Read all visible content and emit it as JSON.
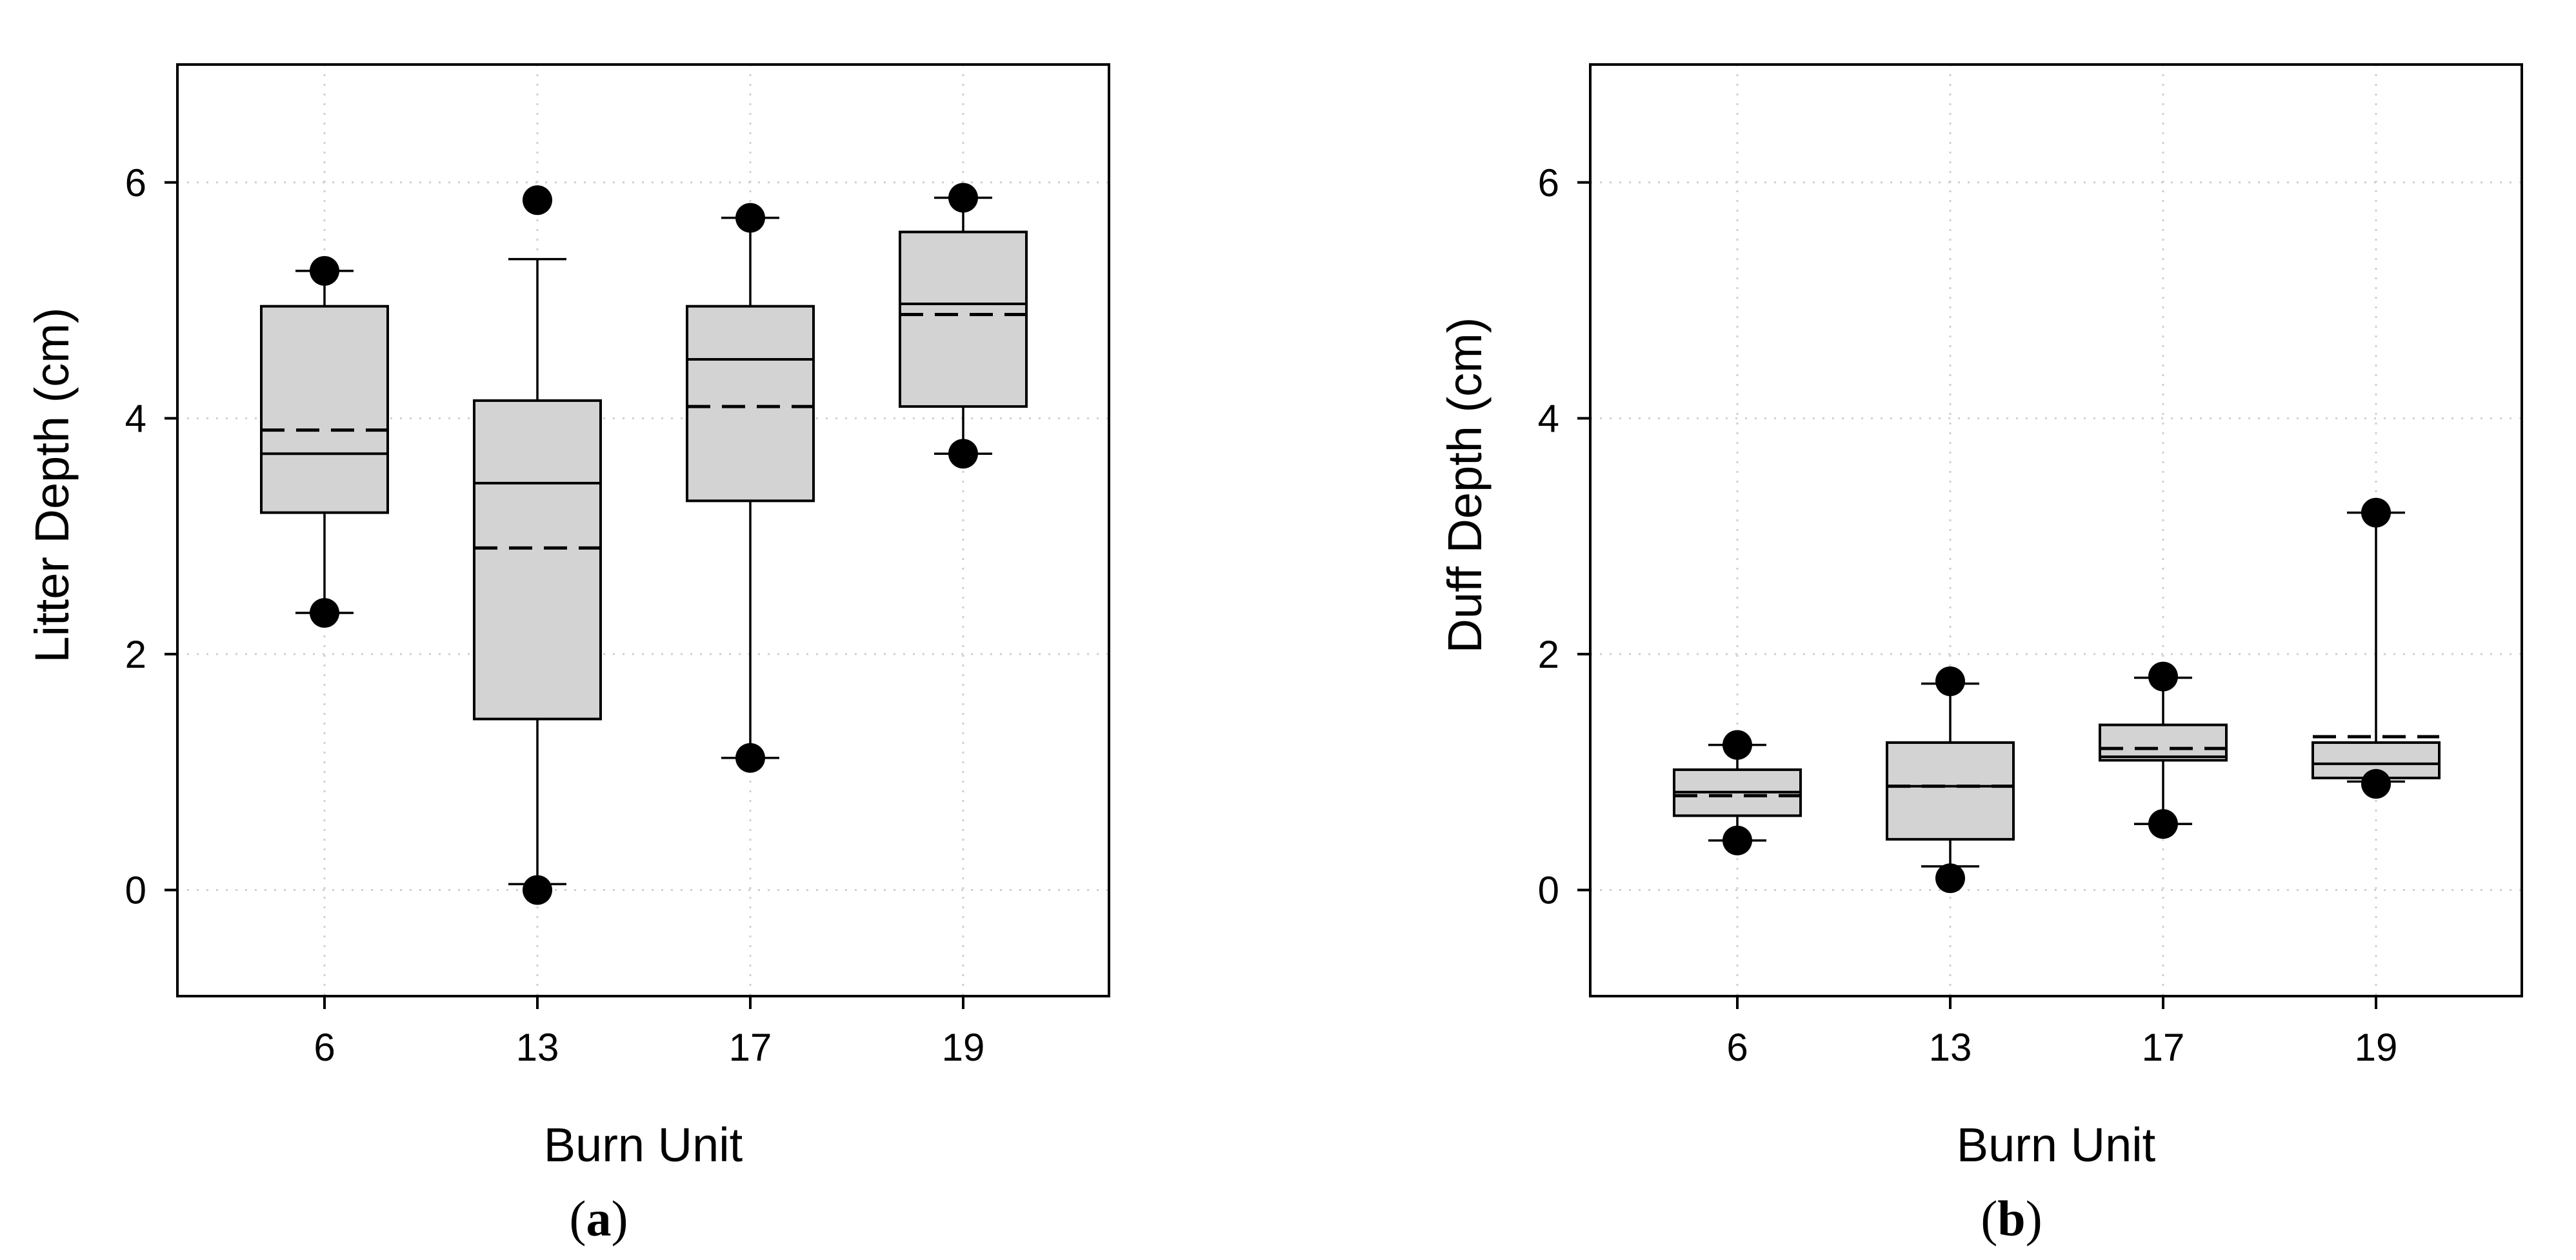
{
  "chart_data": [
    {
      "type": "boxplot",
      "panel_label": "a",
      "xlabel": "Burn Unit",
      "ylabel": "Litter Depth (cm)",
      "ylim": [
        -0.9,
        7.0
      ],
      "yticks": [
        0,
        2,
        4,
        6
      ],
      "grid": true,
      "grid_style": "dotted",
      "box_fill": "#d3d3d3",
      "categories": [
        "6",
        "13",
        "17",
        "19"
      ],
      "boxes": [
        {
          "category": "6",
          "q1": 3.2,
          "median": 3.7,
          "q3": 4.95,
          "mean": 3.9,
          "whisker_low": 2.35,
          "whisker_high": 5.25,
          "outliers": [
            2.35,
            5.25
          ]
        },
        {
          "category": "13",
          "q1": 1.45,
          "median": 3.45,
          "q3": 4.15,
          "mean": 2.9,
          "whisker_low": 0.05,
          "whisker_high": 5.35,
          "outliers": [
            0.0,
            5.85
          ]
        },
        {
          "category": "17",
          "q1": 3.3,
          "median": 4.5,
          "q3": 4.95,
          "mean": 4.1,
          "whisker_low": 1.12,
          "whisker_high": 5.7,
          "outliers": [
            1.12,
            5.7
          ]
        },
        {
          "category": "19",
          "q1": 4.1,
          "median": 4.97,
          "q3": 5.58,
          "mean": 4.88,
          "whisker_low": 3.7,
          "whisker_high": 5.87,
          "outliers": [
            3.7,
            5.87
          ]
        }
      ]
    },
    {
      "type": "boxplot",
      "panel_label": "b",
      "xlabel": "Burn Unit",
      "ylabel": "Duff Depth (cm)",
      "ylim": [
        -0.9,
        7.0
      ],
      "yticks": [
        0,
        2,
        4,
        6
      ],
      "grid": true,
      "grid_style": "dotted",
      "box_fill": "#d3d3d3",
      "categories": [
        "6",
        "13",
        "17",
        "19"
      ],
      "boxes": [
        {
          "category": "6",
          "q1": 0.63,
          "median": 0.83,
          "q3": 1.02,
          "mean": 0.8,
          "whisker_low": 0.42,
          "whisker_high": 1.23,
          "outliers": [
            0.42,
            1.23
          ]
        },
        {
          "category": "13",
          "q1": 0.43,
          "median": 0.88,
          "q3": 1.25,
          "mean": 0.88,
          "whisker_low": 0.2,
          "whisker_high": 1.75,
          "outliers": [
            0.1,
            1.77
          ]
        },
        {
          "category": "17",
          "q1": 1.1,
          "median": 1.13,
          "q3": 1.4,
          "mean": 1.2,
          "whisker_low": 0.56,
          "whisker_high": 1.8,
          "outliers": [
            0.56,
            1.81
          ]
        },
        {
          "category": "19",
          "q1": 0.95,
          "median": 1.07,
          "q3": 1.25,
          "mean": 1.3,
          "whisker_low": 0.92,
          "whisker_high": 3.2,
          "outliers": [
            0.9,
            3.2
          ]
        }
      ]
    }
  ]
}
